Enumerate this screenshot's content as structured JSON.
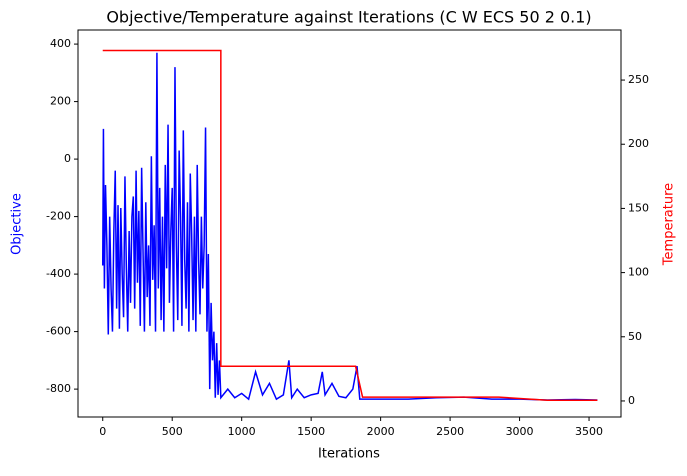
{
  "chart_data": {
    "type": "line",
    "title": "Objective/Temperature against Iterations (C W ECS 50 2 0.1)",
    "xlabel": "Iterations",
    "ylabel": "Objective",
    "y2label": "Temperature",
    "ylabel_color": "#0000ff",
    "y2label_color": "#ff0000",
    "xlim": [
      -178,
      3730
    ],
    "xticks": [
      0,
      500,
      1000,
      1500,
      2000,
      2500,
      3000,
      3500
    ],
    "ylim": [
      -897,
      449
    ],
    "yticks": [
      -800,
      -600,
      -400,
      -200,
      0,
      200,
      400
    ],
    "y2lim": [
      -12.5,
      289
    ],
    "y2ticks": [
      0,
      50,
      100,
      150,
      200,
      250
    ],
    "series": [
      {
        "color": "#0000ff",
        "x": [
          0,
          5,
          12,
          20,
          30,
          40,
          50,
          60,
          70,
          80,
          90,
          100,
          110,
          120,
          130,
          140,
          150,
          160,
          170,
          180,
          190,
          200,
          210,
          220,
          230,
          240,
          250,
          260,
          270,
          280,
          290,
          300,
          310,
          320,
          330,
          340,
          350,
          360,
          370,
          380,
          390,
          400,
          410,
          420,
          430,
          440,
          450,
          460,
          470,
          480,
          490,
          500,
          510,
          520,
          530,
          540,
          550,
          560,
          570,
          580,
          590,
          600,
          610,
          620,
          630,
          640,
          650,
          660,
          670,
          680,
          690,
          700,
          710,
          720,
          730,
          740,
          750,
          760,
          770,
          780,
          790,
          800,
          810,
          820,
          830,
          840,
          850,
          900,
          950,
          1000,
          1050,
          1100,
          1150,
          1200,
          1250,
          1300,
          1340,
          1360,
          1400,
          1450,
          1500,
          1550,
          1580,
          1600,
          1650,
          1700,
          1750,
          1800,
          1830,
          1850,
          2000,
          2200,
          2400,
          2600,
          2800,
          3000,
          3200,
          3400,
          3560
        ],
        "values": [
          -370,
          105,
          -450,
          -90,
          -300,
          -610,
          -200,
          -450,
          -600,
          -250,
          -40,
          -520,
          -160,
          -590,
          -170,
          -400,
          -550,
          -60,
          -380,
          -600,
          -250,
          -500,
          -200,
          -130,
          -520,
          -40,
          -430,
          -180,
          -580,
          -30,
          -320,
          -600,
          -150,
          -480,
          -300,
          -580,
          10,
          -420,
          -230,
          -600,
          370,
          -450,
          -100,
          -560,
          -200,
          -600,
          -20,
          -380,
          120,
          -500,
          -250,
          -100,
          -600,
          320,
          -300,
          -560,
          30,
          -200,
          -580,
          100,
          -350,
          -520,
          -150,
          -600,
          -50,
          -260,
          -560,
          -200,
          -600,
          -20,
          -350,
          -540,
          -200,
          -450,
          -300,
          110,
          -600,
          -330,
          -800,
          -500,
          -700,
          -600,
          -830,
          -640,
          -820,
          -700,
          -830,
          -800,
          -830,
          -815,
          -835,
          -740,
          -820,
          -780,
          -835,
          -820,
          -700,
          -830,
          -800,
          -830,
          -820,
          -815,
          -740,
          -820,
          -780,
          -825,
          -830,
          -800,
          -720,
          -835,
          -835,
          -835,
          -830,
          -828,
          -835,
          -835,
          -838,
          -836,
          -838
        ]
      },
      {
        "color": "#ff0000",
        "axis": "y2",
        "x": [
          0,
          850,
          850,
          1820,
          1870,
          2850,
          3200,
          3560
        ],
        "values": [
          273,
          273,
          27,
          27,
          3,
          3,
          0.5,
          0.5
        ]
      }
    ]
  }
}
